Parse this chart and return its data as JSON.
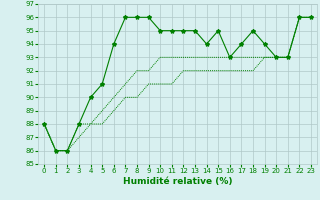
{
  "xlabel": "Humidité relative (%)",
  "line1_x": [
    0,
    1,
    2,
    3,
    4,
    5,
    6,
    7,
    8,
    9,
    10,
    11,
    12,
    13,
    14,
    15,
    16,
    17,
    18,
    19,
    20,
    21,
    22,
    23
  ],
  "line1_y": [
    88,
    86,
    86,
    88,
    90,
    91,
    94,
    96,
    96,
    96,
    95,
    95,
    95,
    95,
    94,
    95,
    93,
    94,
    95,
    94,
    93,
    93,
    96,
    96
  ],
  "line2_x": [
    0,
    1,
    2,
    3,
    4,
    5,
    6,
    7,
    8,
    9,
    10,
    11,
    12,
    13,
    14,
    15,
    16,
    17,
    18,
    19,
    20,
    21,
    22,
    23
  ],
  "line2_y": [
    88,
    86,
    86,
    88,
    88,
    89,
    90,
    91,
    92,
    92,
    93,
    93,
    93,
    93,
    93,
    93,
    93,
    93,
    93,
    93,
    93,
    93,
    96,
    96
  ],
  "line3_x": [
    0,
    1,
    2,
    3,
    4,
    5,
    6,
    7,
    8,
    9,
    10,
    11,
    12,
    13,
    14,
    15,
    16,
    17,
    18,
    19,
    20,
    21,
    22,
    23
  ],
  "line3_y": [
    88,
    86,
    86,
    87,
    88,
    88,
    89,
    90,
    90,
    91,
    91,
    91,
    92,
    92,
    92,
    92,
    92,
    92,
    92,
    93,
    93,
    93,
    96,
    96
  ],
  "line_color": "#008000",
  "bg_color": "#d8f0f0",
  "grid_color": "#b0c8c8",
  "ylim": [
    85,
    97
  ],
  "xlim": [
    -0.5,
    23.5
  ],
  "yticks": [
    85,
    86,
    87,
    88,
    89,
    90,
    91,
    92,
    93,
    94,
    95,
    96,
    97
  ],
  "xticks": [
    0,
    1,
    2,
    3,
    4,
    5,
    6,
    7,
    8,
    9,
    10,
    11,
    12,
    13,
    14,
    15,
    16,
    17,
    18,
    19,
    20,
    21,
    22,
    23
  ],
  "xlabel_color": "#008000",
  "tick_color": "#008000",
  "marker": "*",
  "marker_size": 3,
  "linewidth": 0.8,
  "tick_fontsize": 5,
  "xlabel_fontsize": 6.5
}
